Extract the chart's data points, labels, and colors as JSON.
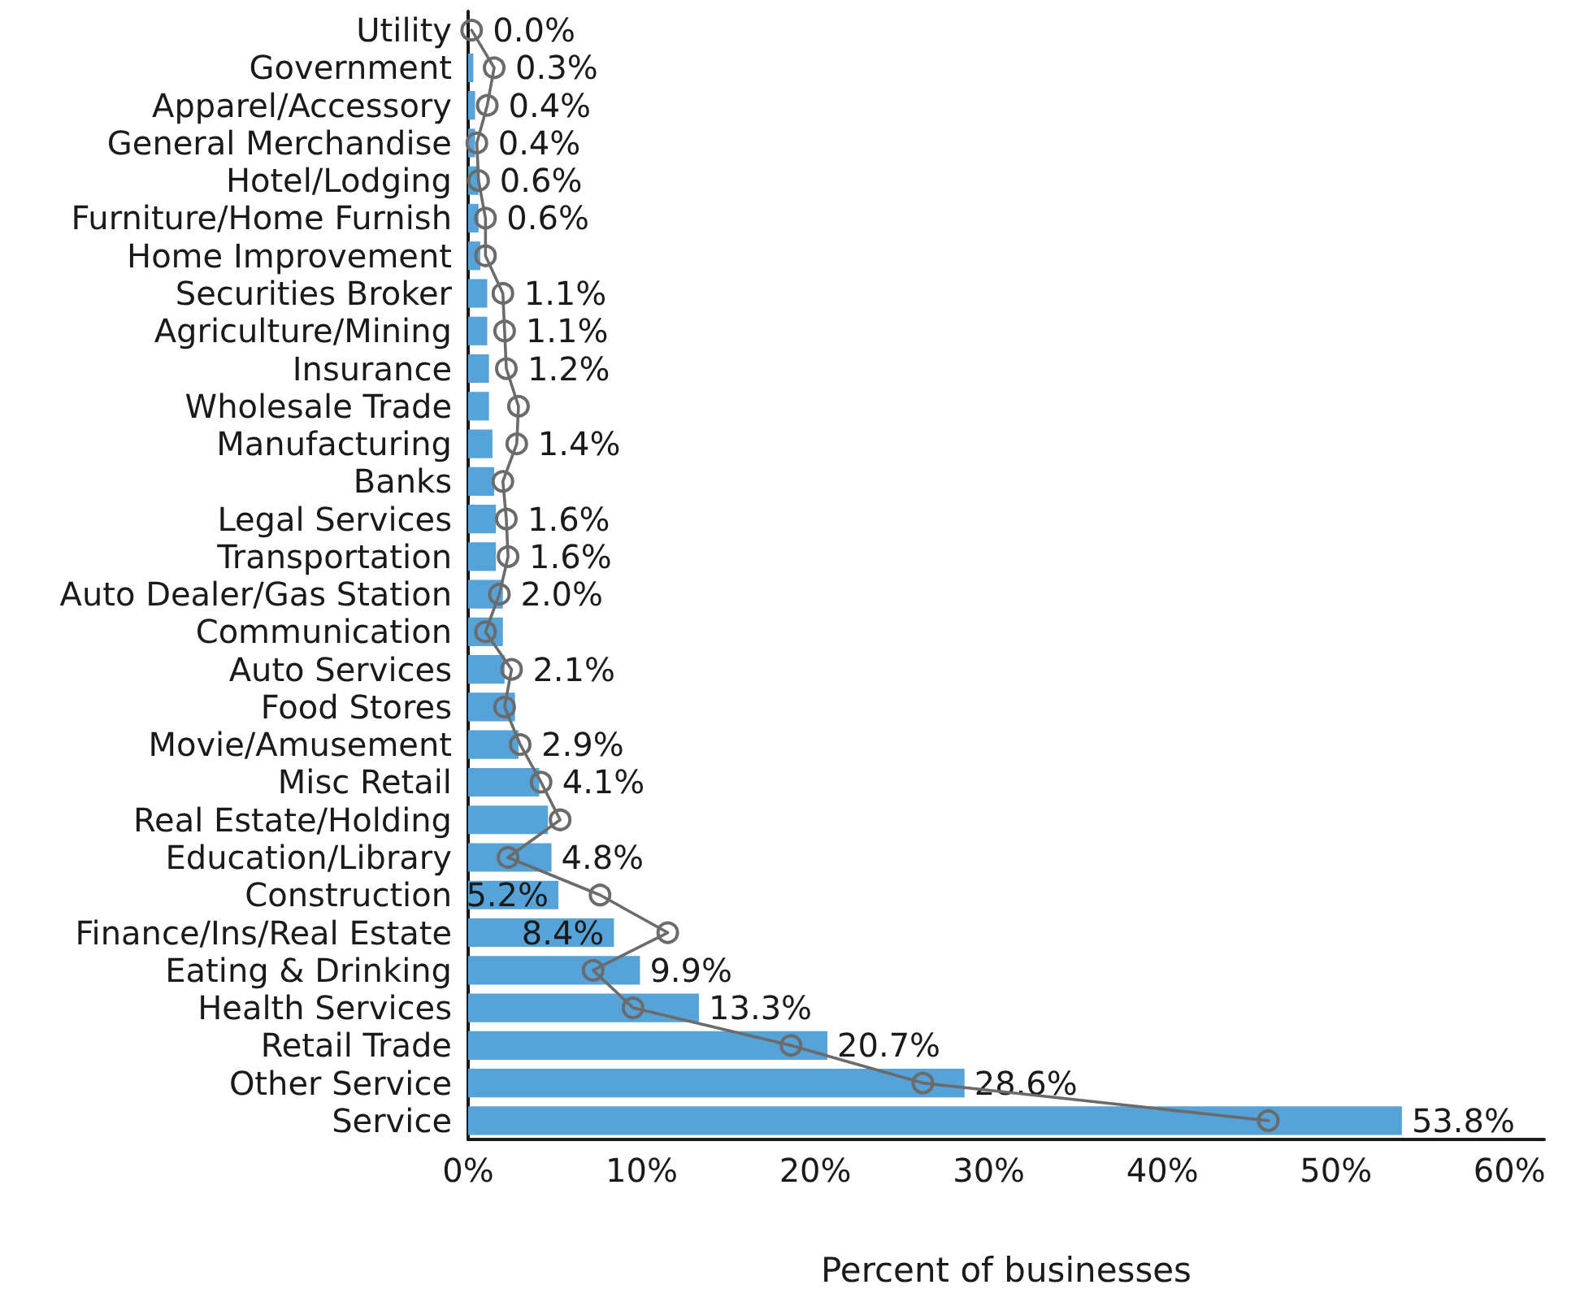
{
  "chart_data": {
    "type": "bar",
    "orientation": "horizontal",
    "xlabel": "Percent of businesses",
    "categories": [
      "Utility",
      "Government",
      "Apparel/Accessory",
      "General Merchandise",
      "Hotel/Lodging",
      "Furniture/Home Furnish",
      "Home Improvement",
      "Securities Broker",
      "Agriculture/Mining",
      "Insurance",
      "Wholesale Trade",
      "Manufacturing",
      "Banks",
      "Legal Services",
      "Transportation",
      "Auto Dealer/Gas Station",
      "Communication",
      "Auto Services",
      "Food Stores",
      "Movie/Amusement",
      "Misc Retail",
      "Real Estate/Holding",
      "Education/Library",
      "Construction",
      "Finance/Ins/Real Estate",
      "Eating & Drinking",
      "Health Services",
      "Retail Trade",
      "Other Service",
      "Service"
    ],
    "series": [
      {
        "color": "#55a3d9",
        "values": [
          0.0,
          0.3,
          0.4,
          0.4,
          0.6,
          0.6,
          0.7,
          1.1,
          1.1,
          1.2,
          1.2,
          1.4,
          1.5,
          1.6,
          1.6,
          2.0,
          2.0,
          2.1,
          2.7,
          2.9,
          4.1,
          4.6,
          4.8,
          5.2,
          8.4,
          9.9,
          13.3,
          20.7,
          28.6,
          53.8
        ],
        "value_labels": [
          "0.0%",
          "0.3%",
          "0.4%",
          "0.4%",
          "0.6%",
          "0.6%",
          null,
          "1.1%",
          "1.1%",
          "1.2%",
          null,
          "1.4%",
          null,
          "1.6%",
          "1.6%",
          "2.0%",
          null,
          "2.1%",
          null,
          "2.9%",
          "4.1%",
          null,
          "4.8%",
          "5.2%",
          "8.4%",
          "9.9%",
          "13.3%",
          "20.7%",
          "28.6%",
          "53.8%"
        ]
      },
      {
        "type": "line",
        "color": "#6b6b6b",
        "marker": "circle",
        "line_style": "solid",
        "values": [
          0.2,
          1.5,
          1.1,
          0.5,
          0.6,
          1.0,
          1.0,
          2.0,
          2.1,
          2.2,
          2.9,
          2.8,
          2.0,
          2.2,
          2.3,
          1.8,
          1.0,
          2.5,
          2.1,
          3.0,
          4.2,
          5.3,
          2.3,
          7.6,
          11.5,
          7.2,
          9.5,
          18.6,
          26.2,
          46.1
        ]
      }
    ],
    "xlim": [
      0,
      62
    ],
    "xticks": [
      {
        "value": 0,
        "label": "0%"
      },
      {
        "value": 10,
        "label": "10%"
      },
      {
        "value": 20,
        "label": "20%"
      },
      {
        "value": 30,
        "label": "30%"
      },
      {
        "value": 40,
        "label": "40%"
      },
      {
        "value": 50,
        "label": "50%"
      },
      {
        "value": 60,
        "label": "60%"
      }
    ]
  }
}
